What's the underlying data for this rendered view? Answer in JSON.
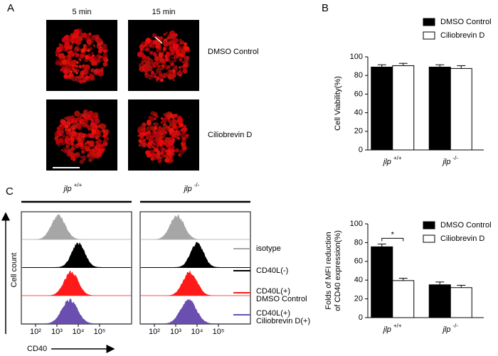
{
  "panels": [
    "A",
    "B",
    "C"
  ],
  "panel_a": {
    "columns": [
      "5 min",
      "15 min"
    ],
    "rows": [
      "DMSO Control",
      "Ciliobrevin D"
    ]
  },
  "panel_c": {
    "groups": [
      "jlp +/+",
      "jlp -/-"
    ],
    "x_ticks": [
      "10²",
      "10³",
      "10⁴",
      "10⁵"
    ],
    "y_label": "Cell count",
    "x_label": "CD40",
    "legend": [
      {
        "lines": [
          "isotype"
        ],
        "color": "#a6a6a6"
      },
      {
        "lines": [
          "CD40L(-)"
        ],
        "color": "#000000"
      },
      {
        "lines": [
          "CD40L(+)",
          "DMSO Control"
        ],
        "color": "#ff1a1a"
      },
      {
        "lines": [
          "CD40L(+)",
          "Ciliobrevin D(+)"
        ],
        "color": "#6a4fb0"
      }
    ]
  },
  "chart_data": [
    {
      "type": "bar",
      "ylabel": [
        "Cell Viability(%)"
      ],
      "categories": [
        "jlp +/+",
        "jlp -/-"
      ],
      "series": [
        {
          "name": "DMSO Control",
          "color": "#000000",
          "values": [
            89,
            89
          ],
          "errors": [
            2.5,
            2.5
          ]
        },
        {
          "name": "Ciliobrevin D",
          "color": "#ffffff",
          "values": [
            90.5,
            87.5
          ],
          "errors": [
            2.5,
            3
          ]
        }
      ],
      "ylim": [
        0,
        100
      ],
      "yticks": [
        0,
        20,
        40,
        60,
        80,
        100
      ],
      "legend": "upper right"
    },
    {
      "type": "bar",
      "ylabel": [
        "Folds of MFI reduction",
        "of CD40 expression(%)"
      ],
      "categories": [
        "jlp +/+",
        "jlp -/-"
      ],
      "series": [
        {
          "name": "DMSO Control",
          "color": "#000000",
          "values": [
            75.5,
            35
          ],
          "errors": [
            3,
            3
          ]
        },
        {
          "name": "Ciliobrevin D",
          "color": "#ffffff",
          "values": [
            39.5,
            32
          ],
          "errors": [
            2.5,
            2.5
          ]
        }
      ],
      "ylim": [
        0,
        100
      ],
      "yticks": [
        0,
        20,
        40,
        60,
        80,
        100
      ],
      "legend": "upper right",
      "annotation": "*"
    }
  ]
}
